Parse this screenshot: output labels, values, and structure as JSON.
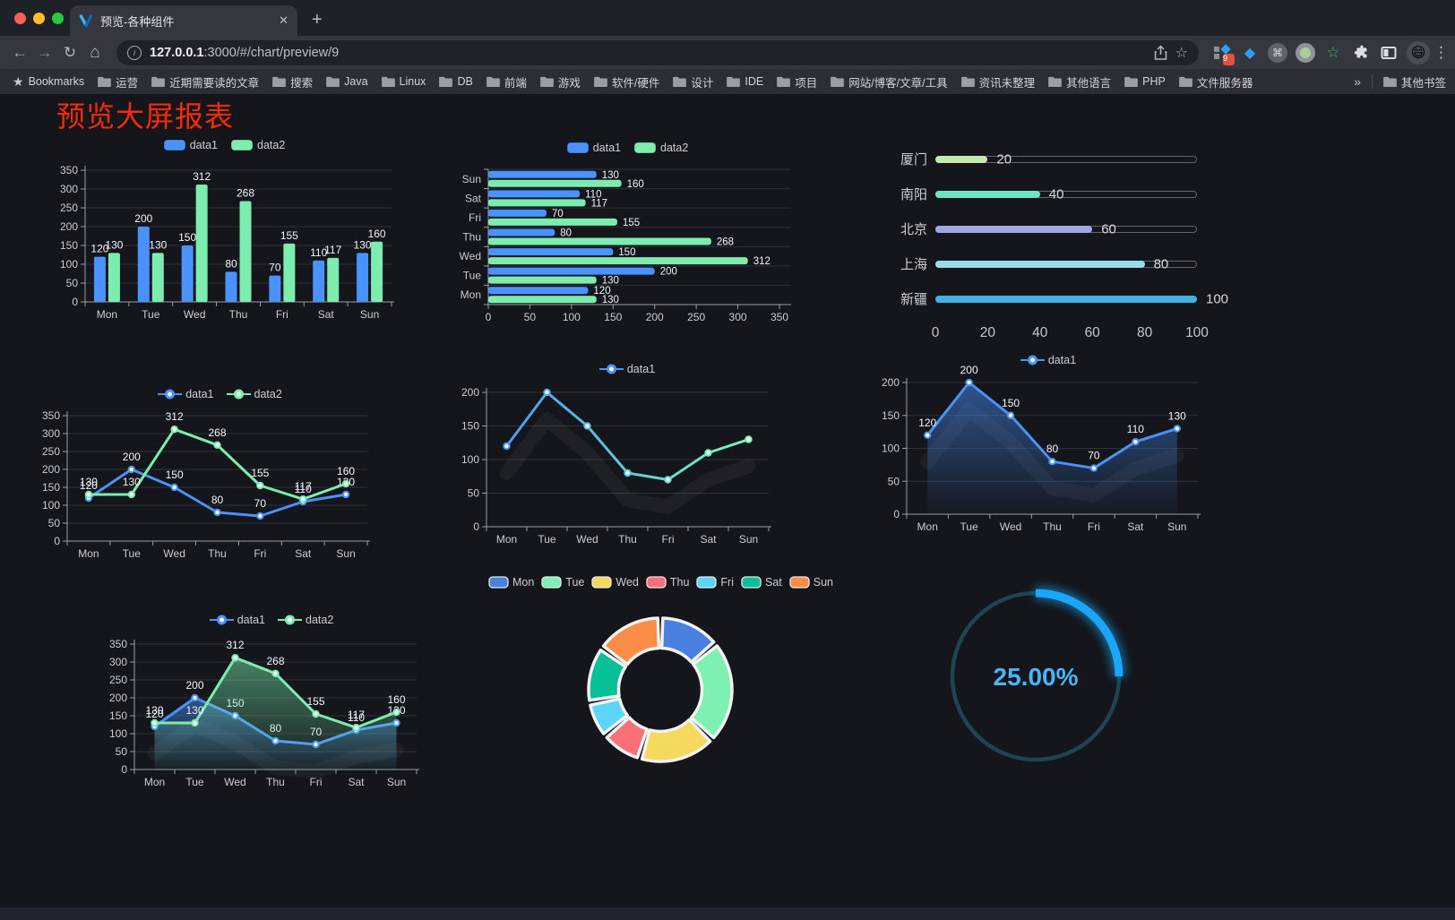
{
  "browser": {
    "tab_title": "预览-各种组件",
    "url_host": "127.0.0.1",
    "url_rest": ":3000/#/chart/preview/9",
    "extensions_badge": "9",
    "bookmarks_label": "Bookmarks",
    "bookmarks": [
      "运营",
      "近期需要读的文章",
      "搜索",
      "Java",
      "Linux",
      "DB",
      "前端",
      "游戏",
      "软件/硬件",
      "设计",
      "IDE",
      "项目",
      "网站/博客/文章/工具",
      "资讯未整理",
      "其他语言",
      "PHP",
      "文件服务器"
    ],
    "bookmarks_overflow": "»",
    "other_bookmarks": "其他书签"
  },
  "page": {
    "title": "预览大屏报表",
    "title_color": "#fb2b07"
  },
  "chart_data": [
    {
      "id": "bar-grouped",
      "type": "bar",
      "legend_position": "top",
      "grid": true,
      "categories": [
        "Mon",
        "Tue",
        "Wed",
        "Thu",
        "Fri",
        "Sat",
        "Sun"
      ],
      "series": [
        {
          "name": "data1",
          "color": "#4992ff",
          "values": [
            120,
            200,
            150,
            80,
            70,
            110,
            130
          ]
        },
        {
          "name": "data2",
          "color": "#7cedae",
          "values": [
            130,
            130,
            312,
            268,
            155,
            117,
            160
          ]
        }
      ],
      "ylim": [
        0,
        350
      ],
      "ystep": 50,
      "value_labels": true
    },
    {
      "id": "bar-horizontal",
      "type": "bar",
      "orientation": "horizontal",
      "legend_position": "top",
      "categories": [
        "Mon",
        "Tue",
        "Wed",
        "Thu",
        "Fri",
        "Sat",
        "Sun"
      ],
      "category_order_displayed": "Sun at top",
      "series": [
        {
          "name": "data1",
          "color": "#4992ff",
          "values": [
            120,
            200,
            150,
            80,
            70,
            110,
            130
          ]
        },
        {
          "name": "data2",
          "color": "#7cedae",
          "values": [
            130,
            130,
            312,
            268,
            155,
            117,
            160
          ]
        }
      ],
      "xlim": [
        0,
        350
      ],
      "xstep": 50,
      "value_labels": true
    },
    {
      "id": "progress-bars",
      "type": "bar",
      "style": "capsule-progress",
      "categories": [
        "厦门",
        "南阳",
        "北京",
        "上海",
        "新疆"
      ],
      "values": [
        20,
        40,
        60,
        80,
        100
      ],
      "colors": [
        "#c4ebad",
        "#6be6c1",
        "#a0a7e6",
        "#96dee8",
        "#3fb1e3"
      ],
      "xlim": [
        0,
        100
      ],
      "xticks": [
        0,
        20,
        40,
        60,
        80,
        100
      ]
    },
    {
      "id": "line-two-series",
      "type": "line",
      "legend_position": "top",
      "categories": [
        "Mon",
        "Tue",
        "Wed",
        "Thu",
        "Fri",
        "Sat",
        "Sun"
      ],
      "series": [
        {
          "name": "data1",
          "color": "#4992ff",
          "values": [
            120,
            200,
            150,
            80,
            70,
            110,
            130
          ]
        },
        {
          "name": "data2",
          "color": "#7cedae",
          "values": [
            130,
            130,
            312,
            268,
            155,
            117,
            160
          ]
        }
      ],
      "ylim": [
        0,
        350
      ],
      "ystep": 50,
      "value_labels": true
    },
    {
      "id": "line-gradient",
      "type": "line",
      "legend_position": "top",
      "categories": [
        "Mon",
        "Tue",
        "Wed",
        "Thu",
        "Fri",
        "Sat",
        "Sun"
      ],
      "series": [
        {
          "name": "data1",
          "gradient": [
            "#4992ff",
            "#7cffb2"
          ],
          "values": [
            120,
            200,
            150,
            80,
            70,
            110,
            130
          ]
        }
      ],
      "ylim": [
        0,
        200
      ],
      "ystep": 50,
      "value_labels": false,
      "shadow_trail": true
    },
    {
      "id": "area-single",
      "type": "area",
      "legend_position": "top",
      "categories": [
        "Mon",
        "Tue",
        "Wed",
        "Thu",
        "Fri",
        "Sat",
        "Sun"
      ],
      "series": [
        {
          "name": "data1",
          "color": "#4992ff",
          "values": [
            120,
            200,
            150,
            80,
            70,
            110,
            130
          ],
          "area": true
        }
      ],
      "ylim": [
        0,
        200
      ],
      "ystep": 50,
      "value_labels": true,
      "shadow_trail": true
    },
    {
      "id": "area-two-series",
      "type": "area",
      "legend_position": "top",
      "categories": [
        "Mon",
        "Tue",
        "Wed",
        "Thu",
        "Fri",
        "Sat",
        "Sun"
      ],
      "series": [
        {
          "name": "data1",
          "color": "#4992ff",
          "values": [
            120,
            200,
            150,
            80,
            70,
            110,
            130
          ],
          "area": true
        },
        {
          "name": "data2",
          "color": "#7cedae",
          "values": [
            130,
            130,
            312,
            268,
            155,
            117,
            160
          ],
          "area": true
        }
      ],
      "ylim": [
        0,
        350
      ],
      "ystep": 50,
      "value_labels": true,
      "shadow_trail": true
    },
    {
      "id": "donut",
      "type": "pie",
      "legend_position": "top",
      "inner_radius_ratio": 0.58,
      "categories": [
        "Mon",
        "Tue",
        "Wed",
        "Thu",
        "Fri",
        "Sat",
        "Sun"
      ],
      "values": [
        120,
        200,
        150,
        80,
        70,
        110,
        130
      ],
      "colors": [
        "#4b80e3",
        "#7df0b2",
        "#f5d95f",
        "#fa7078",
        "#5cd6f7",
        "#08c095",
        "#fb8d49"
      ]
    },
    {
      "id": "gauge",
      "type": "gauge",
      "value": 25,
      "label": "25.00%",
      "progress_color": "#1aa7fa",
      "track_color": "#1d4553",
      "text_color": "#4db4f9"
    }
  ]
}
